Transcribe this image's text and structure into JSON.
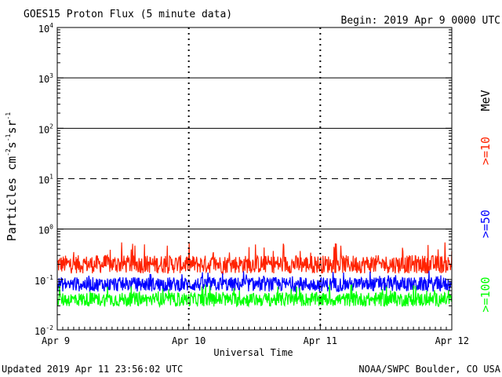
{
  "header": {
    "title": "GOES15 Proton Flux (5 minute data)",
    "begin": "Begin: 2019 Apr 9 0000 UTC"
  },
  "footer": {
    "updated": "Updated 2019 Apr 11 23:56:02 UTC",
    "source": "NOAA/SWPC Boulder, CO USA"
  },
  "chart_data": {
    "type": "line",
    "title": "GOES15 Proton Flux (5 minute data)",
    "xlabel": "Universal Time",
    "ylabel": "Particles cm⁻²s⁻¹sr⁻¹",
    "ylabel_parts": [
      "Particles cm",
      "-2",
      "s",
      "-1",
      "sr",
      "-1"
    ],
    "yscale": "log",
    "ylim": [
      0.01,
      10000
    ],
    "xlim_days": [
      0,
      3
    ],
    "x_ticks": [
      "Apr 9",
      "Apr 10",
      "Apr 11",
      "Apr 12"
    ],
    "y_ticks": [
      {
        "base": "10",
        "exp": "-2",
        "value": 0.01
      },
      {
        "base": "10",
        "exp": "-1",
        "value": 0.1
      },
      {
        "base": "10",
        "exp": "0",
        "value": 1
      },
      {
        "base": "10",
        "exp": "1",
        "value": 10
      },
      {
        "base": "10",
        "exp": "2",
        "value": 100
      },
      {
        "base": "10",
        "exp": "3",
        "value": 1000
      },
      {
        "base": "10",
        "exp": "4",
        "value": 10000
      }
    ],
    "threshold_lines": [
      {
        "value": 1,
        "style": "solid"
      },
      {
        "value": 10,
        "style": "dashed"
      },
      {
        "value": 100,
        "style": "solid"
      },
      {
        "value": 1000,
        "style": "solid"
      }
    ],
    "legend_unit": "MeV",
    "series": [
      {
        "name": ">=10",
        "color": "#ff2200",
        "typical": 0.2,
        "range": [
          0.12,
          0.55
        ]
      },
      {
        "name": ">=50",
        "color": "#0000ff",
        "typical": 0.08,
        "range": [
          0.045,
          0.15
        ]
      },
      {
        "name": ">=100",
        "color": "#00ff00",
        "typical": 0.04,
        "range": [
          0.025,
          0.08
        ]
      }
    ],
    "grid": false
  }
}
